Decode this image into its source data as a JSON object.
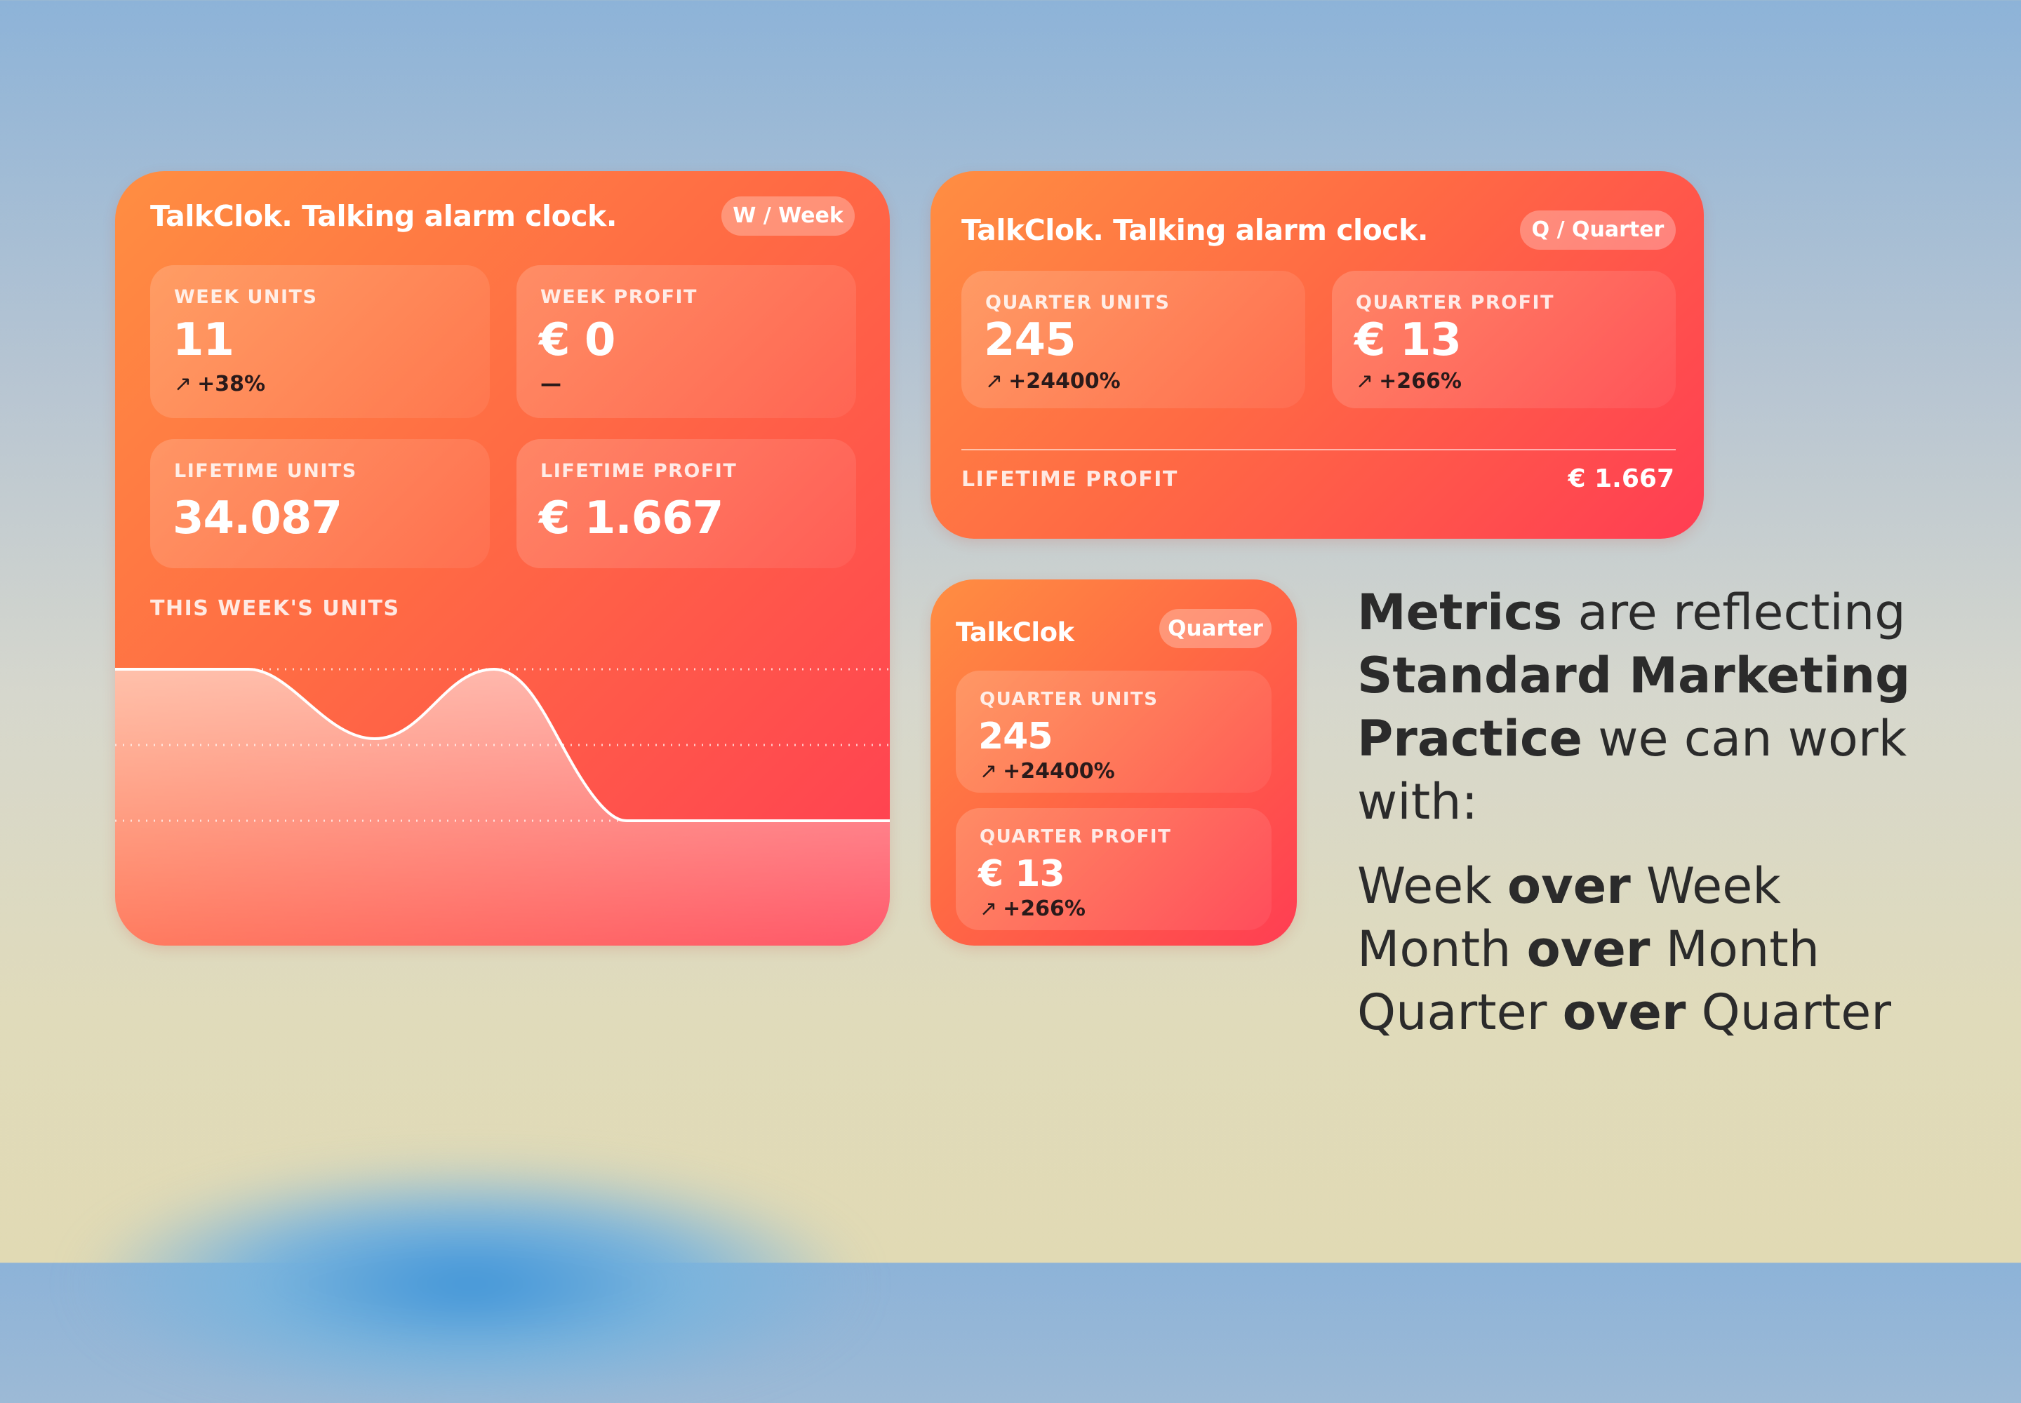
{
  "colors": {
    "widget_gradient_start": "#ff8e42",
    "widget_gradient_end": "#ff3d53",
    "text_dark": "#2b2b2b"
  },
  "weekly_widget": {
    "title": "TalkClok. Talking alarm clock.",
    "badge": "W / Week",
    "tiles": [
      {
        "label": "WEEK UNITS",
        "value": "11",
        "change": "+38%",
        "arrow": "↗"
      },
      {
        "label": "WEEK PROFIT",
        "value": "€ 0",
        "change": "—",
        "arrow": ""
      },
      {
        "label": "LIFETIME UNITS",
        "value": "34.087"
      },
      {
        "label": "LIFETIME PROFIT",
        "value": "€ 1.667"
      }
    ],
    "chart_label": "THIS WEEK'S UNITS"
  },
  "quarter_widget_large": {
    "title": "TalkClok. Talking alarm clock.",
    "badge": "Q / Quarter",
    "tiles": [
      {
        "label": "QUARTER UNITS",
        "value": "245",
        "change": "+24400%",
        "arrow": "↗"
      },
      {
        "label": "QUARTER PROFIT",
        "value": "€ 13",
        "change": "+266%",
        "arrow": "↗"
      }
    ],
    "footer_label": "LIFETIME PROFIT",
    "footer_value": "€ 1.667"
  },
  "quarter_widget_small": {
    "title": "TalkClok",
    "badge": "Quarter",
    "tiles": [
      {
        "label": "QUARTER UNITS",
        "value": "245",
        "change": "+24400%",
        "arrow": "↗"
      },
      {
        "label": "QUARTER PROFIT",
        "value": "€ 13",
        "change": "+266%",
        "arrow": "↗"
      }
    ]
  },
  "copy": {
    "line1_bold": "Metrics",
    "line1_rest": " are reflecting",
    "line2_bold": "Standard Marketing",
    "line3_bold": "Practice",
    "line3_rest": " we can work",
    "line4": "with:",
    "rows": [
      {
        "a": "Week ",
        "b": "over",
        "c": " Week"
      },
      {
        "a": "Month ",
        "b": "over",
        "c": " Month"
      },
      {
        "a": "Quarter ",
        "b": "over",
        "c": " Quarter"
      }
    ]
  }
}
